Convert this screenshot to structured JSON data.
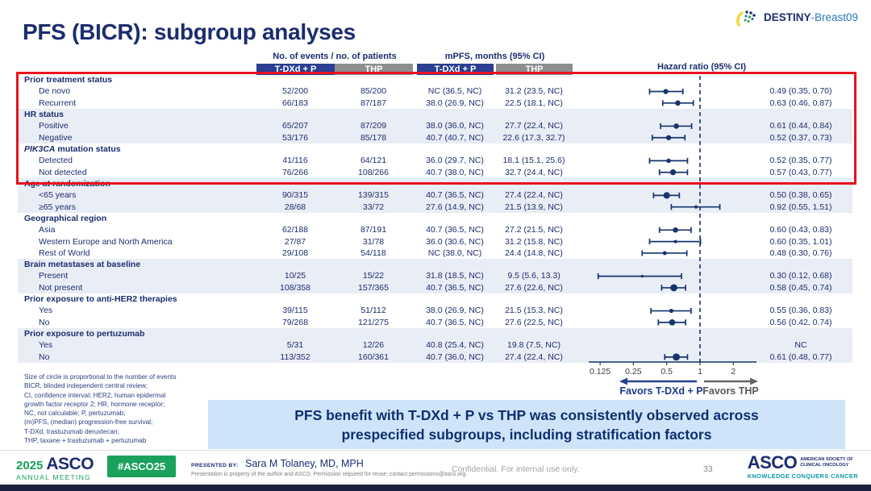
{
  "header": {
    "title": "PFS (BICR): subgroup analyses",
    "logo_primary": "DESTINY",
    "logo_secondary": "-Breast09"
  },
  "columns": {
    "events_header": "No. of events / no. of patients",
    "mpfs_header": "mPFS, months (95% CI)",
    "hr_header": "Hazard ratio (95% CI)",
    "arm1": "T-DXd + P",
    "arm2": "THP"
  },
  "chart_data": {
    "type": "scatter",
    "variant": "forest-plot",
    "xscale": "log2",
    "xticks": [
      0.125,
      0.25,
      0.5,
      1,
      2
    ],
    "ref_line": 1,
    "favors_left": "Favors T-DXd + P",
    "favors_right": "Favors THP",
    "size_rule": "circle area proportional to number of events",
    "groups": [
      {
        "label": "Prior treatment status",
        "shaded": false,
        "highlighted": true,
        "rows": [
          {
            "label": "De novo",
            "events_tdxd": "52/200",
            "events_thp": "85/200",
            "mpfs_tdxd": "NC (36.5, NC)",
            "mpfs_thp": "31.2 (23.5, NC)",
            "hr": 0.49,
            "ci": [
              0.35,
              0.7
            ],
            "hr_text": "0.49 (0.35, 0.70)"
          },
          {
            "label": "Recurrent",
            "events_tdxd": "66/183",
            "events_thp": "87/187",
            "mpfs_tdxd": "38.0 (26.9, NC)",
            "mpfs_thp": "22.5 (18.1, NC)",
            "hr": 0.63,
            "ci": [
              0.46,
              0.87
            ],
            "hr_text": "0.63 (0.46, 0.87)"
          }
        ]
      },
      {
        "label": "HR status",
        "shaded": true,
        "highlighted": true,
        "rows": [
          {
            "label": "Positive",
            "events_tdxd": "65/207",
            "events_thp": "87/209",
            "mpfs_tdxd": "38.0 (36.0, NC)",
            "mpfs_thp": "27.7 (22.4, NC)",
            "hr": 0.61,
            "ci": [
              0.44,
              0.84
            ],
            "hr_text": "0.61 (0.44, 0.84)"
          },
          {
            "label": "Negative",
            "events_tdxd": "53/176",
            "events_thp": "85/178",
            "mpfs_tdxd": "40.7 (40.7, NC)",
            "mpfs_thp": "22.6 (17.3, 32.7)",
            "hr": 0.52,
            "ci": [
              0.37,
              0.73
            ],
            "hr_text": "0.52 (0.37, 0.73)"
          }
        ]
      },
      {
        "label": "PIK3CA mutation status",
        "italic_prefix": "PIK3CA",
        "shaded": false,
        "highlighted": true,
        "rows": [
          {
            "label": "Detected",
            "events_tdxd": "41/116",
            "events_thp": "64/121",
            "mpfs_tdxd": "36.0 (29.7, NC)",
            "mpfs_thp": "18.1 (15.1, 25.6)",
            "hr": 0.52,
            "ci": [
              0.35,
              0.77
            ],
            "hr_text": "0.52 (0.35, 0.77)"
          },
          {
            "label": "Not detected",
            "events_tdxd": "76/266",
            "events_thp": "108/266",
            "mpfs_tdxd": "40.7 (38.0, NC)",
            "mpfs_thp": "32.7 (24.4, NC)",
            "hr": 0.57,
            "ci": [
              0.43,
              0.77
            ],
            "hr_text": "0.57 (0.43, 0.77)"
          }
        ]
      },
      {
        "label": "Age at randomization",
        "shaded": true,
        "highlighted": false,
        "rows": [
          {
            "label": "<65 years",
            "events_tdxd": "90/315",
            "events_thp": "139/315",
            "mpfs_tdxd": "40.7 (36.5, NC)",
            "mpfs_thp": "27.4 (22.4, NC)",
            "hr": 0.5,
            "ci": [
              0.38,
              0.65
            ],
            "hr_text": "0.50 (0.38, 0.65)"
          },
          {
            "label": "≥65 years",
            "events_tdxd": "28/68",
            "events_thp": "33/72",
            "mpfs_tdxd": "27.6 (14.9, NC)",
            "mpfs_thp": "21.5 (13.9, NC)",
            "hr": 0.92,
            "ci": [
              0.55,
              1.51
            ],
            "hr_text": "0.92 (0.55, 1.51)"
          }
        ]
      },
      {
        "label": "Geographical region",
        "shaded": false,
        "highlighted": false,
        "rows": [
          {
            "label": "Asia",
            "events_tdxd": "62/188",
            "events_thp": "87/191",
            "mpfs_tdxd": "40.7 (36.5, NC)",
            "mpfs_thp": "27.2 (21.5, NC)",
            "hr": 0.6,
            "ci": [
              0.43,
              0.83
            ],
            "hr_text": "0.60 (0.43, 0.83)"
          },
          {
            "label": "Western Europe and North America",
            "events_tdxd": "27/87",
            "events_thp": "31/78",
            "mpfs_tdxd": "36.0 (30.6, NC)",
            "mpfs_thp": "31.2 (15.8, NC)",
            "hr": 0.6,
            "ci": [
              0.35,
              1.01
            ],
            "hr_text": "0.60 (0.35, 1.01)"
          },
          {
            "label": "Rest of World",
            "events_tdxd": "29/108",
            "events_thp": "54/118",
            "mpfs_tdxd": "NC (38.0, NC)",
            "mpfs_thp": "24.4 (14.8, NC)",
            "hr": 0.48,
            "ci": [
              0.3,
              0.76
            ],
            "hr_text": "0.48 (0.30, 0.76)"
          }
        ]
      },
      {
        "label": "Brain metastases at baseline",
        "shaded": true,
        "highlighted": false,
        "rows": [
          {
            "label": "Present",
            "events_tdxd": "10/25",
            "events_thp": "15/22",
            "mpfs_tdxd": "31.8 (18.5, NC)",
            "mpfs_thp": "9.5 (5.6, 13.3)",
            "hr": 0.3,
            "ci": [
              0.12,
              0.68
            ],
            "hr_text": "0.30 (0.12, 0.68)"
          },
          {
            "label": "Not present",
            "events_tdxd": "108/358",
            "events_thp": "157/365",
            "mpfs_tdxd": "40.7 (36.5, NC)",
            "mpfs_thp": "27.6 (22.6, NC)",
            "hr": 0.58,
            "ci": [
              0.45,
              0.74
            ],
            "hr_text": "0.58 (0.45, 0.74)"
          }
        ]
      },
      {
        "label": "Prior exposure to anti-HER2 therapies",
        "shaded": false,
        "highlighted": false,
        "rows": [
          {
            "label": "Yes",
            "events_tdxd": "39/115",
            "events_thp": "51/112",
            "mpfs_tdxd": "38.0 (26.9, NC)",
            "mpfs_thp": "21.5 (15.3, NC)",
            "hr": 0.55,
            "ci": [
              0.36,
              0.83
            ],
            "hr_text": "0.55 (0.36, 0.83)"
          },
          {
            "label": "No",
            "events_tdxd": "79/268",
            "events_thp": "121/275",
            "mpfs_tdxd": "40.7 (36.5, NC)",
            "mpfs_thp": "27.6 (22.5, NC)",
            "hr": 0.56,
            "ci": [
              0.42,
              0.74
            ],
            "hr_text": "0.56 (0.42, 0.74)"
          }
        ]
      },
      {
        "label": "Prior exposure to pertuzumab",
        "shaded": true,
        "highlighted": false,
        "rows": [
          {
            "label": "Yes",
            "events_tdxd": "5/31",
            "events_thp": "12/26",
            "mpfs_tdxd": "40.8 (25.4, NC)",
            "mpfs_thp": "19.8 (7.5, NC)",
            "hr": null,
            "ci": null,
            "hr_text": "NC"
          },
          {
            "label": "No",
            "events_tdxd": "113/352",
            "events_thp": "160/361",
            "mpfs_tdxd": "40.7 (36.0, NC)",
            "mpfs_thp": "27.4 (22.4, NC)",
            "hr": 0.61,
            "ci": [
              0.48,
              0.77
            ],
            "hr_text": "0.61 (0.48, 0.77)"
          }
        ]
      }
    ]
  },
  "footnotes": [
    "Size of circle is proportional to the number of events",
    "BICR, blinded independent central review;",
    "CI, confidence interval; HER2, human epidermal",
    "growth factor receptor 2; HR, hormone receptor;",
    "NC, not calculable; P, pertuzumab;",
    "(m)PFS, (median) progression-free survival;",
    "T-DXd, trastuzumab deruxtecan;",
    "THP, taxane + trastuzumab + pertuzumab"
  ],
  "banner": {
    "line1": "PFS benefit with T-DXd + P vs THP was consistently observed across",
    "line2": "prespecified subgroups, including stratification factors"
  },
  "footer": {
    "year": "2025",
    "org": "ASCO",
    "meeting": "ANNUAL MEETING",
    "hashtag": "#ASCO25",
    "presented_by_label": "PRESENTED BY:",
    "presenter": "Sara M Tolaney, MD, MPH",
    "permission": "Presentation is property of the author and ASCO. Permission required for reuse; contact permissions@asco.org.",
    "confidential": "Confidential. For internal use only.",
    "page_number": "33",
    "asco_logo": "ASCO",
    "asco_sub1": "AMERICAN SOCIETY OF",
    "asco_sub2": "CLINICAL ONCOLOGY",
    "asco_tagline": "KNOWLEDGE CONQUERS CANCER"
  },
  "colors": {
    "navy_text": "#1b2d6e",
    "bar_blue": "#2a3f92",
    "bar_gray": "#8e8e90",
    "row_shade": "#e9edf5",
    "highlight_red": "#e8131d",
    "banner_bg": "#cfe4f8",
    "marker_navy": "#17346d",
    "asco_green": "#18a05a",
    "teal": "#0b97a8"
  }
}
